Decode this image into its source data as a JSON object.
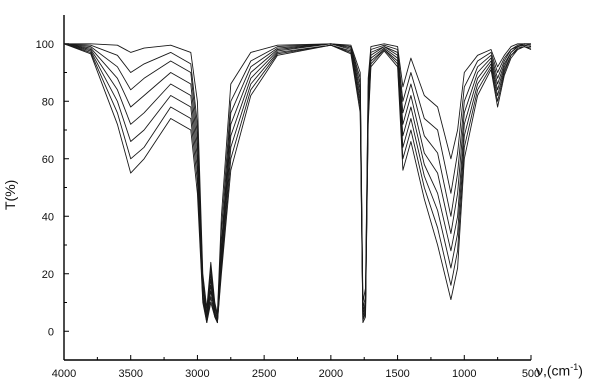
{
  "chart_data": {
    "type": "line",
    "ylabel": "T(%)",
    "xlabel_main": "ν,(cm",
    "xlabel_sup": "-1",
    "xlabel_close": ")",
    "xlim": [
      4000,
      500
    ],
    "ylim": [
      -10,
      110
    ],
    "x_ticks": [
      4000,
      3500,
      3000,
      2500,
      2000,
      1500,
      1000,
      500
    ],
    "y_ticks": [
      0,
      20,
      40,
      60,
      80,
      100
    ],
    "grid": false,
    "series": [
      {
        "values": [
          [
            4000,
            100
          ],
          [
            3800,
            100
          ],
          [
            3600,
            99.5
          ],
          [
            3500,
            97
          ],
          [
            3400,
            98.5
          ],
          [
            3200,
            99.5
          ],
          [
            3050,
            97
          ],
          [
            3000,
            80
          ],
          [
            2960,
            20
          ],
          [
            2930,
            8
          ],
          [
            2900,
            24
          ],
          [
            2870,
            10
          ],
          [
            2850,
            6
          ],
          [
            2820,
            40
          ],
          [
            2750,
            86
          ],
          [
            2600,
            97
          ],
          [
            2400,
            99.5
          ],
          [
            2000,
            100
          ],
          [
            1850,
            99.5
          ],
          [
            1780,
            90
          ],
          [
            1760,
            10
          ],
          [
            1740,
            15
          ],
          [
            1720,
            88
          ],
          [
            1700,
            99
          ],
          [
            1600,
            100
          ],
          [
            1500,
            99
          ],
          [
            1460,
            85
          ],
          [
            1400,
            95
          ],
          [
            1300,
            82
          ],
          [
            1200,
            78
          ],
          [
            1100,
            60
          ],
          [
            1050,
            70
          ],
          [
            1000,
            90
          ],
          [
            900,
            96
          ],
          [
            800,
            98
          ],
          [
            750,
            92
          ],
          [
            700,
            96
          ],
          [
            650,
            99
          ],
          [
            600,
            100
          ],
          [
            550,
            100
          ],
          [
            500,
            100
          ]
        ]
      },
      {
        "values": [
          [
            4000,
            100
          ],
          [
            3800,
            99.5
          ],
          [
            3600,
            96
          ],
          [
            3500,
            90
          ],
          [
            3400,
            93
          ],
          [
            3200,
            97
          ],
          [
            3050,
            93
          ],
          [
            3000,
            72
          ],
          [
            2960,
            18
          ],
          [
            2930,
            6
          ],
          [
            2900,
            22
          ],
          [
            2870,
            9
          ],
          [
            2850,
            5
          ],
          [
            2820,
            35
          ],
          [
            2750,
            80
          ],
          [
            2600,
            94
          ],
          [
            2400,
            99
          ],
          [
            2000,
            100
          ],
          [
            1850,
            99
          ],
          [
            1780,
            88
          ],
          [
            1760,
            8
          ],
          [
            1740,
            12
          ],
          [
            1720,
            85
          ],
          [
            1700,
            98
          ],
          [
            1600,
            99.5
          ],
          [
            1500,
            98
          ],
          [
            1460,
            80
          ],
          [
            1400,
            90
          ],
          [
            1300,
            74
          ],
          [
            1200,
            70
          ],
          [
            1100,
            48
          ],
          [
            1050,
            62
          ],
          [
            1000,
            85
          ],
          [
            900,
            94
          ],
          [
            800,
            97
          ],
          [
            750,
            90
          ],
          [
            700,
            95
          ],
          [
            650,
            98
          ],
          [
            600,
            99.5
          ],
          [
            550,
            100
          ],
          [
            500,
            100
          ]
        ]
      },
      {
        "values": [
          [
            4000,
            100
          ],
          [
            3800,
            99
          ],
          [
            3600,
            92
          ],
          [
            3500,
            84
          ],
          [
            3400,
            88
          ],
          [
            3200,
            94
          ],
          [
            3050,
            90
          ],
          [
            3000,
            68
          ],
          [
            2960,
            16
          ],
          [
            2930,
            5
          ],
          [
            2900,
            20
          ],
          [
            2870,
            8
          ],
          [
            2850,
            5
          ],
          [
            2820,
            30
          ],
          [
            2750,
            76
          ],
          [
            2600,
            92
          ],
          [
            2400,
            98.5
          ],
          [
            2000,
            100
          ],
          [
            1850,
            99
          ],
          [
            1780,
            86
          ],
          [
            1760,
            7
          ],
          [
            1740,
            10
          ],
          [
            1720,
            82
          ],
          [
            1700,
            97
          ],
          [
            1600,
            99
          ],
          [
            1500,
            97
          ],
          [
            1460,
            76
          ],
          [
            1400,
            86
          ],
          [
            1300,
            68
          ],
          [
            1200,
            62
          ],
          [
            1100,
            40
          ],
          [
            1050,
            55
          ],
          [
            1000,
            80
          ],
          [
            900,
            92
          ],
          [
            800,
            96
          ],
          [
            750,
            88
          ],
          [
            700,
            94
          ],
          [
            650,
            98
          ],
          [
            600,
            99
          ],
          [
            550,
            100
          ],
          [
            500,
            99.5
          ]
        ]
      },
      {
        "values": [
          [
            4000,
            100
          ],
          [
            3800,
            98.5
          ],
          [
            3600,
            88
          ],
          [
            3500,
            78
          ],
          [
            3400,
            82
          ],
          [
            3200,
            90
          ],
          [
            3050,
            86
          ],
          [
            3000,
            64
          ],
          [
            2960,
            15
          ],
          [
            2930,
            5
          ],
          [
            2900,
            18
          ],
          [
            2870,
            7
          ],
          [
            2850,
            4
          ],
          [
            2820,
            28
          ],
          [
            2750,
            72
          ],
          [
            2600,
            90
          ],
          [
            2400,
            98
          ],
          [
            2000,
            100
          ],
          [
            1850,
            98.5
          ],
          [
            1780,
            84
          ],
          [
            1760,
            6
          ],
          [
            1740,
            9
          ],
          [
            1720,
            80
          ],
          [
            1700,
            96
          ],
          [
            1600,
            99
          ],
          [
            1500,
            96
          ],
          [
            1460,
            72
          ],
          [
            1400,
            82
          ],
          [
            1300,
            62
          ],
          [
            1200,
            55
          ],
          [
            1100,
            34
          ],
          [
            1050,
            48
          ],
          [
            1000,
            76
          ],
          [
            900,
            90
          ],
          [
            800,
            95
          ],
          [
            750,
            86
          ],
          [
            700,
            93
          ],
          [
            650,
            97
          ],
          [
            600,
            99
          ],
          [
            550,
            99.5
          ],
          [
            500,
            99
          ]
        ]
      },
      {
        "values": [
          [
            4000,
            100
          ],
          [
            3800,
            98
          ],
          [
            3600,
            84
          ],
          [
            3500,
            72
          ],
          [
            3400,
            76
          ],
          [
            3200,
            86
          ],
          [
            3050,
            82
          ],
          [
            3000,
            60
          ],
          [
            2960,
            14
          ],
          [
            2930,
            4
          ],
          [
            2900,
            16
          ],
          [
            2870,
            6
          ],
          [
            2850,
            4
          ],
          [
            2820,
            26
          ],
          [
            2750,
            68
          ],
          [
            2600,
            88
          ],
          [
            2400,
            97.5
          ],
          [
            2000,
            100
          ],
          [
            1850,
            98
          ],
          [
            1780,
            82
          ],
          [
            1760,
            5
          ],
          [
            1740,
            8
          ],
          [
            1720,
            78
          ],
          [
            1700,
            95
          ],
          [
            1600,
            98.5
          ],
          [
            1500,
            95
          ],
          [
            1460,
            68
          ],
          [
            1400,
            78
          ],
          [
            1300,
            58
          ],
          [
            1200,
            48
          ],
          [
            1100,
            28
          ],
          [
            1050,
            40
          ],
          [
            1000,
            72
          ],
          [
            900,
            88
          ],
          [
            800,
            94
          ],
          [
            750,
            84
          ],
          [
            700,
            92
          ],
          [
            650,
            97
          ],
          [
            600,
            99
          ],
          [
            550,
            99.5
          ],
          [
            500,
            99
          ]
        ]
      },
      {
        "values": [
          [
            4000,
            100
          ],
          [
            3800,
            97.5
          ],
          [
            3600,
            80
          ],
          [
            3500,
            66
          ],
          [
            3400,
            70
          ],
          [
            3200,
            82
          ],
          [
            3050,
            78
          ],
          [
            3000,
            56
          ],
          [
            2960,
            12
          ],
          [
            2930,
            4
          ],
          [
            2900,
            14
          ],
          [
            2870,
            6
          ],
          [
            2850,
            3
          ],
          [
            2820,
            24
          ],
          [
            2750,
            64
          ],
          [
            2600,
            86
          ],
          [
            2400,
            97
          ],
          [
            2000,
            99.5
          ],
          [
            1850,
            97.5
          ],
          [
            1780,
            80
          ],
          [
            1760,
            4
          ],
          [
            1740,
            7
          ],
          [
            1720,
            76
          ],
          [
            1700,
            94
          ],
          [
            1600,
            98
          ],
          [
            1500,
            94
          ],
          [
            1460,
            64
          ],
          [
            1400,
            74
          ],
          [
            1300,
            54
          ],
          [
            1200,
            42
          ],
          [
            1100,
            22
          ],
          [
            1050,
            34
          ],
          [
            1000,
            68
          ],
          [
            900,
            86
          ],
          [
            800,
            93
          ],
          [
            750,
            82
          ],
          [
            700,
            91
          ],
          [
            650,
            96
          ],
          [
            600,
            98.5
          ],
          [
            550,
            99
          ],
          [
            500,
            98.5
          ]
        ]
      },
      {
        "values": [
          [
            4000,
            100
          ],
          [
            3800,
            97
          ],
          [
            3600,
            76
          ],
          [
            3500,
            60
          ],
          [
            3400,
            64
          ],
          [
            3200,
            78
          ],
          [
            3050,
            74
          ],
          [
            3000,
            52
          ],
          [
            2960,
            11
          ],
          [
            2930,
            3
          ],
          [
            2900,
            12
          ],
          [
            2870,
            5
          ],
          [
            2850,
            3
          ],
          [
            2820,
            22
          ],
          [
            2750,
            60
          ],
          [
            2600,
            84
          ],
          [
            2400,
            96.5
          ],
          [
            2000,
            99.5
          ],
          [
            1850,
            97
          ],
          [
            1780,
            78
          ],
          [
            1760,
            4
          ],
          [
            1740,
            6
          ],
          [
            1720,
            74
          ],
          [
            1700,
            93
          ],
          [
            1600,
            98
          ],
          [
            1500,
            93
          ],
          [
            1460,
            60
          ],
          [
            1400,
            70
          ],
          [
            1300,
            50
          ],
          [
            1200,
            36
          ],
          [
            1100,
            16
          ],
          [
            1050,
            28
          ],
          [
            1000,
            64
          ],
          [
            900,
            84
          ],
          [
            800,
            92
          ],
          [
            750,
            80
          ],
          [
            700,
            90
          ],
          [
            650,
            96
          ],
          [
            600,
            98
          ],
          [
            550,
            99
          ],
          [
            500,
            98
          ]
        ]
      },
      {
        "values": [
          [
            4000,
            100
          ],
          [
            3800,
            96.5
          ],
          [
            3600,
            72
          ],
          [
            3500,
            55
          ],
          [
            3400,
            60
          ],
          [
            3200,
            74
          ],
          [
            3050,
            70
          ],
          [
            3000,
            48
          ],
          [
            2960,
            10
          ],
          [
            2930,
            3
          ],
          [
            2900,
            10
          ],
          [
            2870,
            5
          ],
          [
            2850,
            3
          ],
          [
            2820,
            20
          ],
          [
            2750,
            56
          ],
          [
            2600,
            82
          ],
          [
            2400,
            96
          ],
          [
            2000,
            99.5
          ],
          [
            1850,
            96.5
          ],
          [
            1780,
            76
          ],
          [
            1760,
            3
          ],
          [
            1740,
            5
          ],
          [
            1720,
            72
          ],
          [
            1700,
            92
          ],
          [
            1600,
            97.5
          ],
          [
            1500,
            92
          ],
          [
            1460,
            56
          ],
          [
            1400,
            66
          ],
          [
            1300,
            46
          ],
          [
            1200,
            30
          ],
          [
            1100,
            11
          ],
          [
            1050,
            22
          ],
          [
            1000,
            60
          ],
          [
            900,
            82
          ],
          [
            800,
            91
          ],
          [
            750,
            78
          ],
          [
            700,
            89
          ],
          [
            650,
            95
          ],
          [
            600,
            98
          ],
          [
            550,
            99
          ],
          [
            500,
            98
          ]
        ]
      }
    ]
  }
}
